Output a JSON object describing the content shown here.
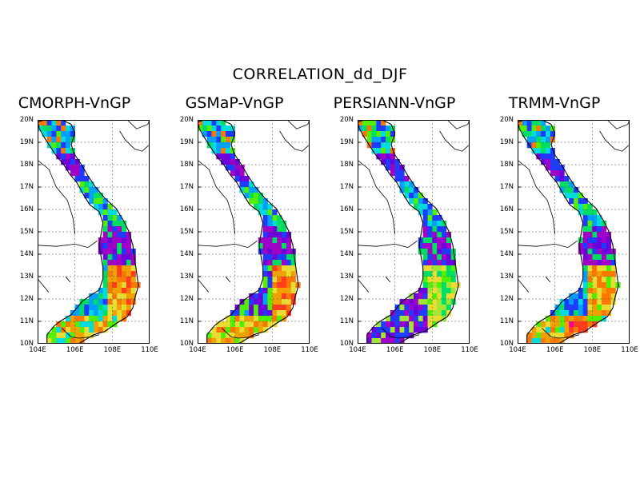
{
  "title": "CORRELATION_dd_DJF",
  "panels": [
    {
      "title": "CMORPH-VnGP",
      "scheme": "cmorph"
    },
    {
      "title": "GSMaP-VnGP",
      "scheme": "gsmap"
    },
    {
      "title": "PERSIANN-VnGP",
      "scheme": "persiann"
    },
    {
      "title": "TRMM-VnGP",
      "scheme": "trmm"
    }
  ],
  "y_ticks": [
    "20N",
    "19N",
    "18N",
    "17N",
    "16N",
    "15N",
    "14N",
    "13N",
    "12N",
    "11N",
    "10N"
  ],
  "x_ticks": [
    "104E",
    "106E",
    "108E",
    "110E"
  ],
  "colors": {
    "palette": [
      "#a000c8",
      "#6e00dc",
      "#1e3cff",
      "#00a0ff",
      "#00dcdc",
      "#00dc64",
      "#50f000",
      "#a0e632",
      "#e6dc32",
      "#f0a000",
      "#fa7800",
      "#ff3c1e",
      "#ff0096"
    ]
  }
}
